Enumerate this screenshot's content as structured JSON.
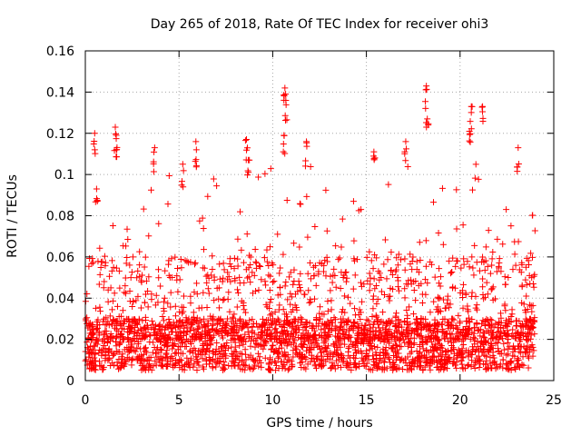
{
  "chart_data": {
    "type": "scatter",
    "title": "Day 265 of 2018, Rate Of TEC Index for receiver ohi3",
    "xlabel": "GPS time / hours",
    "ylabel": "ROTI / TECUs",
    "xlim": [
      0,
      25
    ],
    "ylim": [
      0,
      0.16
    ],
    "x_ticks": [
      0,
      5,
      10,
      15,
      20,
      25
    ],
    "y_ticks": [
      0,
      0.02,
      0.04,
      0.06,
      0.08,
      0.1,
      0.12,
      0.14,
      0.16
    ],
    "x_tick_labels": [
      "0",
      "5",
      "10",
      "15",
      "20",
      "25"
    ],
    "y_tick_labels": [
      "0",
      "0.02",
      "0.04",
      "0.06",
      "0.08",
      "0.1",
      "0.12",
      "0.14",
      "0.16"
    ],
    "grid": true,
    "marker": "+",
    "marker_color": "#ff0000",
    "series": [
      {
        "name": "ROTI",
        "x_range": [
          0,
          24
        ],
        "baseline_roti_range": [
          0.005,
          0.03
        ],
        "typical_upper_envelope": 0.06,
        "approx_point_count": 2900,
        "peaks": [
          {
            "x": 0.5,
            "y": 0.12
          },
          {
            "x": 0.6,
            "y": 0.093
          },
          {
            "x": 1.6,
            "y": 0.123
          },
          {
            "x": 1.65,
            "y": 0.119
          },
          {
            "x": 3.7,
            "y": 0.113
          },
          {
            "x": 5.2,
            "y": 0.105
          },
          {
            "x": 5.9,
            "y": 0.116
          },
          {
            "x": 8.6,
            "y": 0.117
          },
          {
            "x": 8.7,
            "y": 0.107
          },
          {
            "x": 10.65,
            "y": 0.142
          },
          {
            "x": 10.7,
            "y": 0.136
          },
          {
            "x": 10.6,
            "y": 0.119
          },
          {
            "x": 11.8,
            "y": 0.116
          },
          {
            "x": 15.4,
            "y": 0.111
          },
          {
            "x": 17.1,
            "y": 0.116
          },
          {
            "x": 18.2,
            "y": 0.143
          },
          {
            "x": 18.25,
            "y": 0.127
          },
          {
            "x": 20.6,
            "y": 0.133
          },
          {
            "x": 20.5,
            "y": 0.121
          },
          {
            "x": 21.2,
            "y": 0.133
          },
          {
            "x": 23.1,
            "y": 0.113
          }
        ]
      }
    ]
  }
}
